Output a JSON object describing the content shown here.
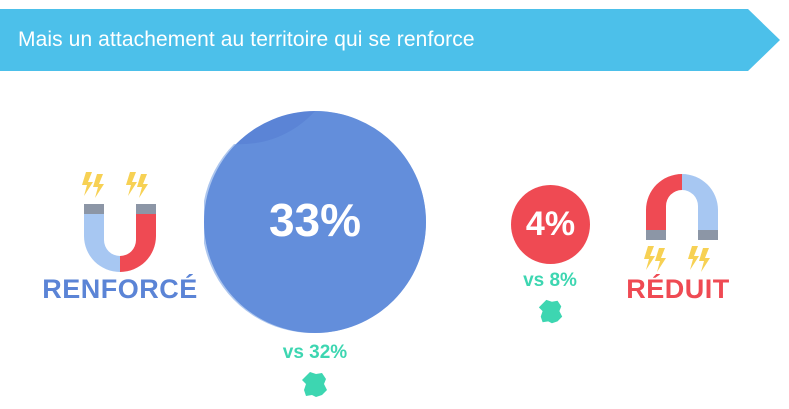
{
  "title": "Mais un attachement au territoire qui se renforce",
  "colors": {
    "banner": "#4cc0ea",
    "big_circle": "#5b84d6",
    "small_circle": "#ef4a53",
    "comparison": "#3dd6b1",
    "label_renforce": "#5b84d6",
    "label_reduit": "#ef4a53",
    "lightning": "#f7d154"
  },
  "renforce": {
    "label": "RENFORCÉ",
    "value": "33%",
    "comparison": "vs 32%",
    "icon": "magnet-up-icon"
  },
  "reduit": {
    "label": "RÉDUIT",
    "value": "4%",
    "comparison": "vs 8%",
    "icon": "magnet-down-icon"
  },
  "comparison_icon": "france-map-icon"
}
